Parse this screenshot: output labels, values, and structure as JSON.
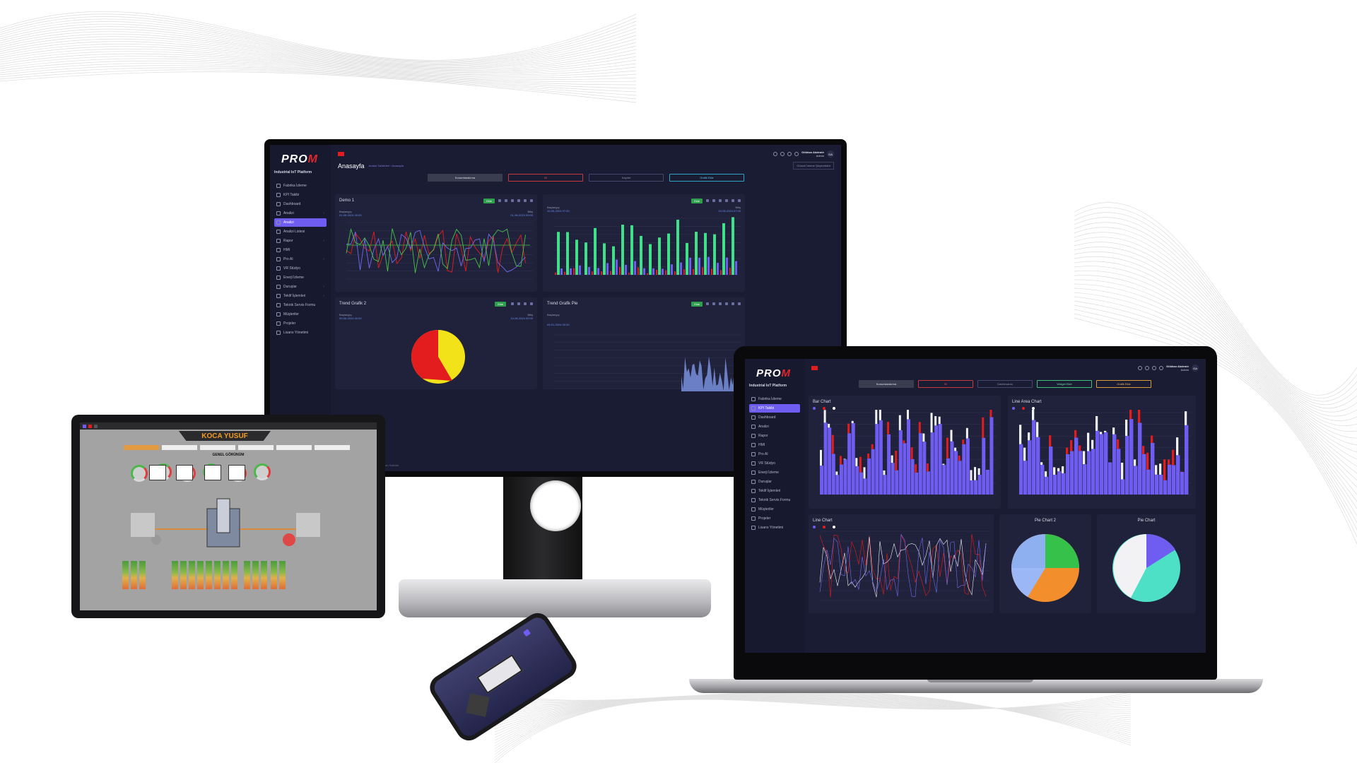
{
  "monitor": {
    "logo": {
      "text_a": "PRO",
      "text_b": "M",
      "subtitle": "Industrial IoT Platform"
    },
    "sidebar_caption": "",
    "nav": [
      {
        "label": "Fabrika İzleme",
        "active": false,
        "chev": false
      },
      {
        "label": "KPI Takibi",
        "active": false,
        "chev": false
      },
      {
        "label": "Dashboard",
        "active": false,
        "chev": false
      },
      {
        "label": "Analizi",
        "active": false,
        "chev": true
      },
      {
        "label": "Analizi",
        "active": true,
        "chev": false
      },
      {
        "label": "Analizi Listesi",
        "active": false,
        "chev": false
      },
      {
        "label": "Rapor",
        "active": false,
        "chev": true
      },
      {
        "label": "HMI",
        "active": false,
        "chev": false
      },
      {
        "label": "Pro AI",
        "active": false,
        "chev": true
      },
      {
        "label": "VR Stüdyo",
        "active": false,
        "chev": false
      },
      {
        "label": "Enerji İzleme",
        "active": false,
        "chev": false
      },
      {
        "label": "Duruşlar",
        "active": false,
        "chev": true
      },
      {
        "label": "Teklif İşlemleri",
        "active": false,
        "chev": true
      },
      {
        "label": "Teknik Servis Formu",
        "active": false,
        "chev": false
      },
      {
        "label": "Müşteriler",
        "active": false,
        "chev": false
      },
      {
        "label": "Projeler",
        "active": false,
        "chev": false
      },
      {
        "label": "Lisans Yönetimi",
        "active": false,
        "chev": false
      }
    ],
    "user": {
      "name": "Gökhan Akdemir",
      "role": "Admin",
      "initials": "GA"
    },
    "page_title": "Anasayfa",
    "breadcrumb": "Analizi Sahifeleri › Anasayfa",
    "select": "Güncel İzleme Şeçenekleri",
    "toolbar": [
      "Konumlandırma",
      "Sil",
      "Kaydet",
      "Grafik Ekle"
    ],
    "cards": [
      {
        "title": "Demo 1",
        "add": "Ekle",
        "start_label": "Başlangıç",
        "end_label": "Bitiş",
        "start": "01-05-2024 00:00",
        "end": "01-06-2024 00:00"
      },
      {
        "title": "",
        "add": "Ekle",
        "start_label": "Başlangıç",
        "end_label": "Bitiş",
        "start": "10-05-2024 07:00",
        "end": "10-05-2024 07:00"
      },
      {
        "title": "Trend Grafik 2",
        "add": "Ekle",
        "start_label": "Başlangıç",
        "end_label": "Bitiş",
        "start": "09-06-2024 00:00",
        "end": "10-06-2024 00:00"
      },
      {
        "title": "Trend Grafik Pie",
        "add": "Ekle",
        "start_label": "Başlangıç",
        "end_label": "",
        "start": "09-01-2024 00:00",
        "end": ""
      }
    ],
    "footer": "Tüm Hakları Saklıdır"
  },
  "tablet": {
    "title": "KOCA YUSUF",
    "tabs": [
      "",
      "",
      "",
      "",
      "",
      ""
    ],
    "subtitle": "GENEL GÖRÜNÜM"
  },
  "laptop": {
    "user": {
      "name": "Gökhan Akdemir",
      "role": "Admin",
      "initials": "GA"
    },
    "nav": [
      {
        "label": "Fabrika İzleme",
        "active": false
      },
      {
        "label": "KPI Takibi",
        "active": true
      },
      {
        "label": "Dashboard",
        "active": false
      },
      {
        "label": "Analizi",
        "active": false
      },
      {
        "label": "Rapor",
        "active": false
      },
      {
        "label": "HMI",
        "active": false
      },
      {
        "label": "Pro AI",
        "active": false
      },
      {
        "label": "VR Stüdyo",
        "active": false
      },
      {
        "label": "Enerji İzleme",
        "active": false
      },
      {
        "label": "Duruşlar",
        "active": false
      },
      {
        "label": "Teklif İşlemleri",
        "active": false
      },
      {
        "label": "Teknik Servis Formu",
        "active": false
      },
      {
        "label": "Müşteriler",
        "active": false
      },
      {
        "label": "Projeler",
        "active": false
      },
      {
        "label": "Lisans Yönetimi",
        "active": false
      }
    ],
    "toolbar": [
      "Konumlandırma",
      "Sil",
      "Dashboardu",
      "Widget Ekle",
      "Grafik Ekle"
    ],
    "cards": [
      "Bar Chart",
      "Line Area Chart",
      "Line Chart",
      "Pie Chart 2",
      "Pie Chart"
    ]
  },
  "colors": {
    "accent": "#6f5cf0",
    "red": "#e0262e",
    "green": "#2e9f4c",
    "bg": "#1a1c33",
    "card": "#20223b"
  }
}
